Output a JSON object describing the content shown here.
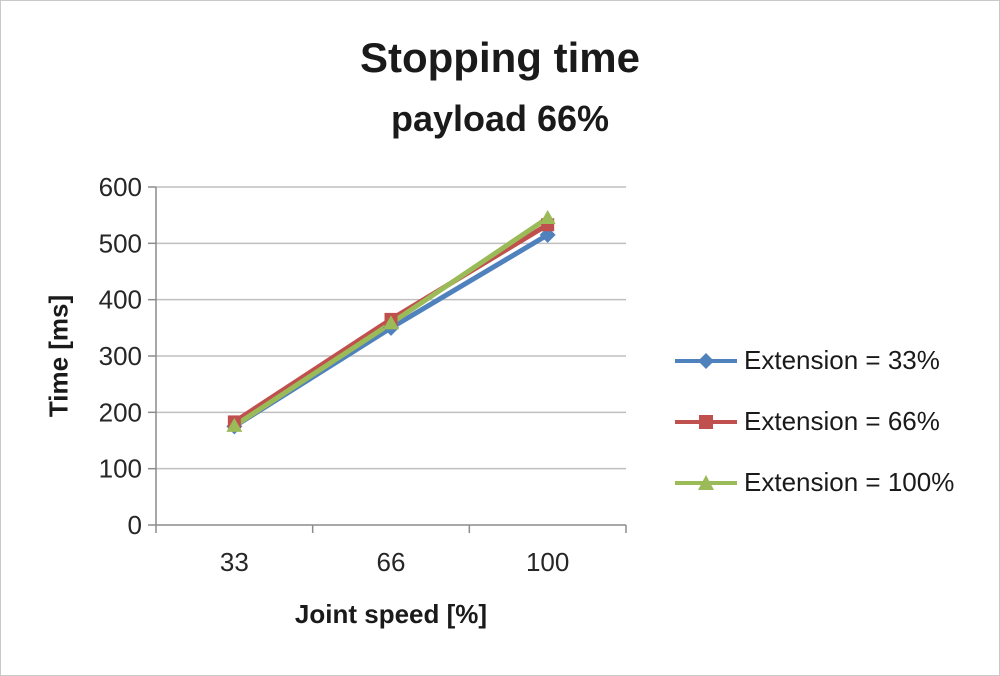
{
  "chart_data": {
    "type": "line",
    "title": "Stopping time",
    "subtitle": "payload 66%",
    "xlabel": "Joint speed [%]",
    "ylabel": "Time [ms]",
    "categories": [
      "33",
      "66",
      "100"
    ],
    "series": [
      {
        "name": "Extension = 33%",
        "marker": "diamond",
        "color": "#4F81BD",
        "values": [
          175,
          350,
          515
        ]
      },
      {
        "name": "Extension = 66%",
        "marker": "square",
        "color": "#C0504D",
        "values": [
          183,
          365,
          533
        ]
      },
      {
        "name": "Extension = 100%",
        "marker": "triangle",
        "color": "#9BBB59",
        "values": [
          176,
          358,
          545
        ]
      }
    ],
    "ylim": [
      0,
      600
    ],
    "ytick_step": 100,
    "grid": true,
    "legend_position": "right"
  },
  "colors": {
    "grid": "#bfbfbf",
    "axis": "#8c8c8c",
    "text": "#262626"
  }
}
